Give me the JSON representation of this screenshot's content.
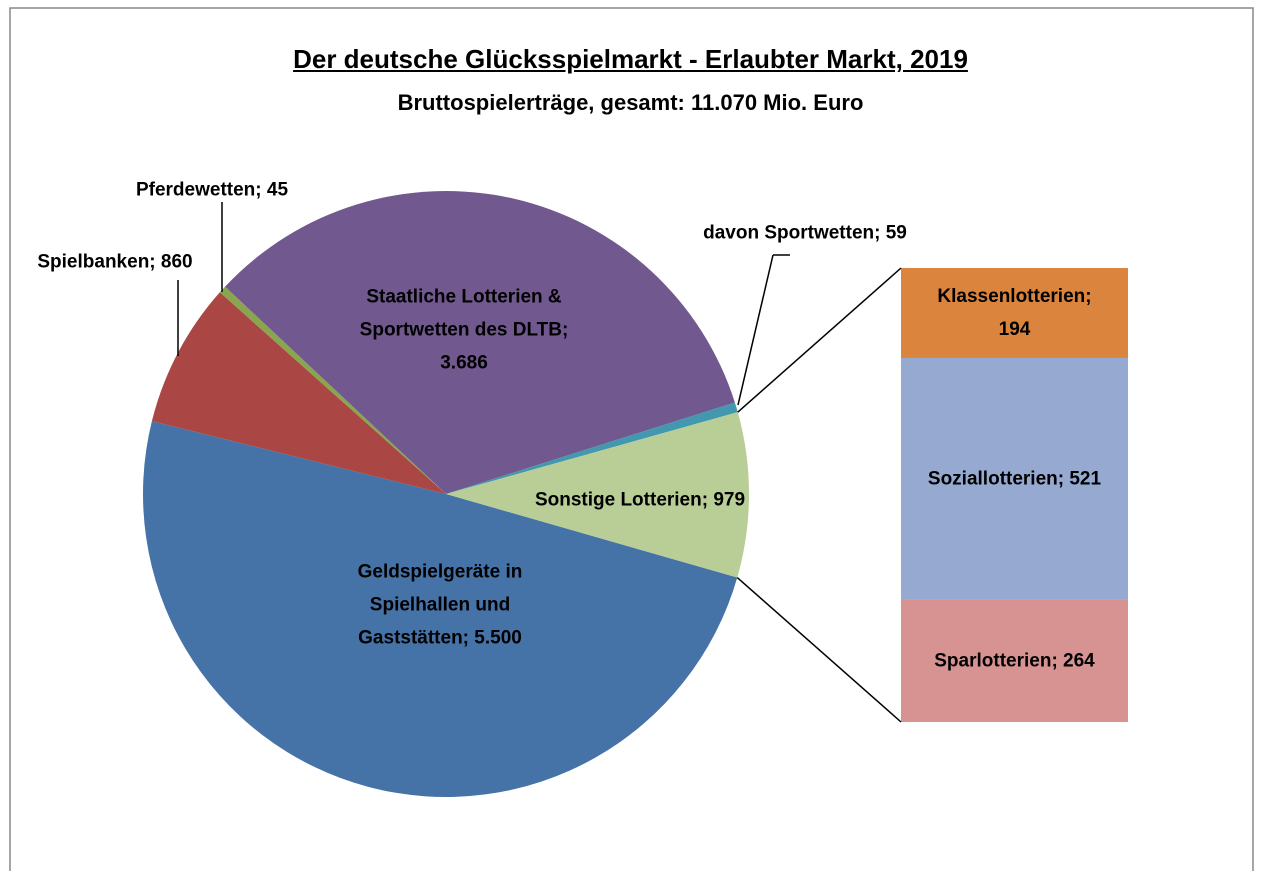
{
  "chart_data": {
    "type": "pie",
    "title": "Der deutsche Glücksspielmarkt - Erlaubter Markt, 2019",
    "subtitle": "Bruttospielerträge, gesamt: 11.070 Mio. Euro",
    "values": [
      5500,
      860,
      45,
      3686,
      59,
      979
    ],
    "value_labels": [
      "Geldspielgeräte in Spielhallen und Gaststätten; 5.500",
      "Spielbanken; 860",
      "Pferdewetten; 45",
      "Staatliche Lotterien & Sportwetten des DLTB; 3.686",
      "davon Sportwetten; 59",
      "Sonstige Lotterien; 979"
    ],
    "colors": [
      "#4572a7",
      "#aa4643",
      "#89a54e",
      "#71588f",
      "#4198af",
      "#b9cd96"
    ],
    "breakout": {
      "values": [
        194,
        521,
        264
      ],
      "value_labels": [
        "Klassenlotterien; 194",
        "Soziallotterien; 521",
        "Sparlotterien; 264"
      ],
      "colors": [
        "#db843d",
        "#95a9d1",
        "#d69392"
      ]
    }
  }
}
